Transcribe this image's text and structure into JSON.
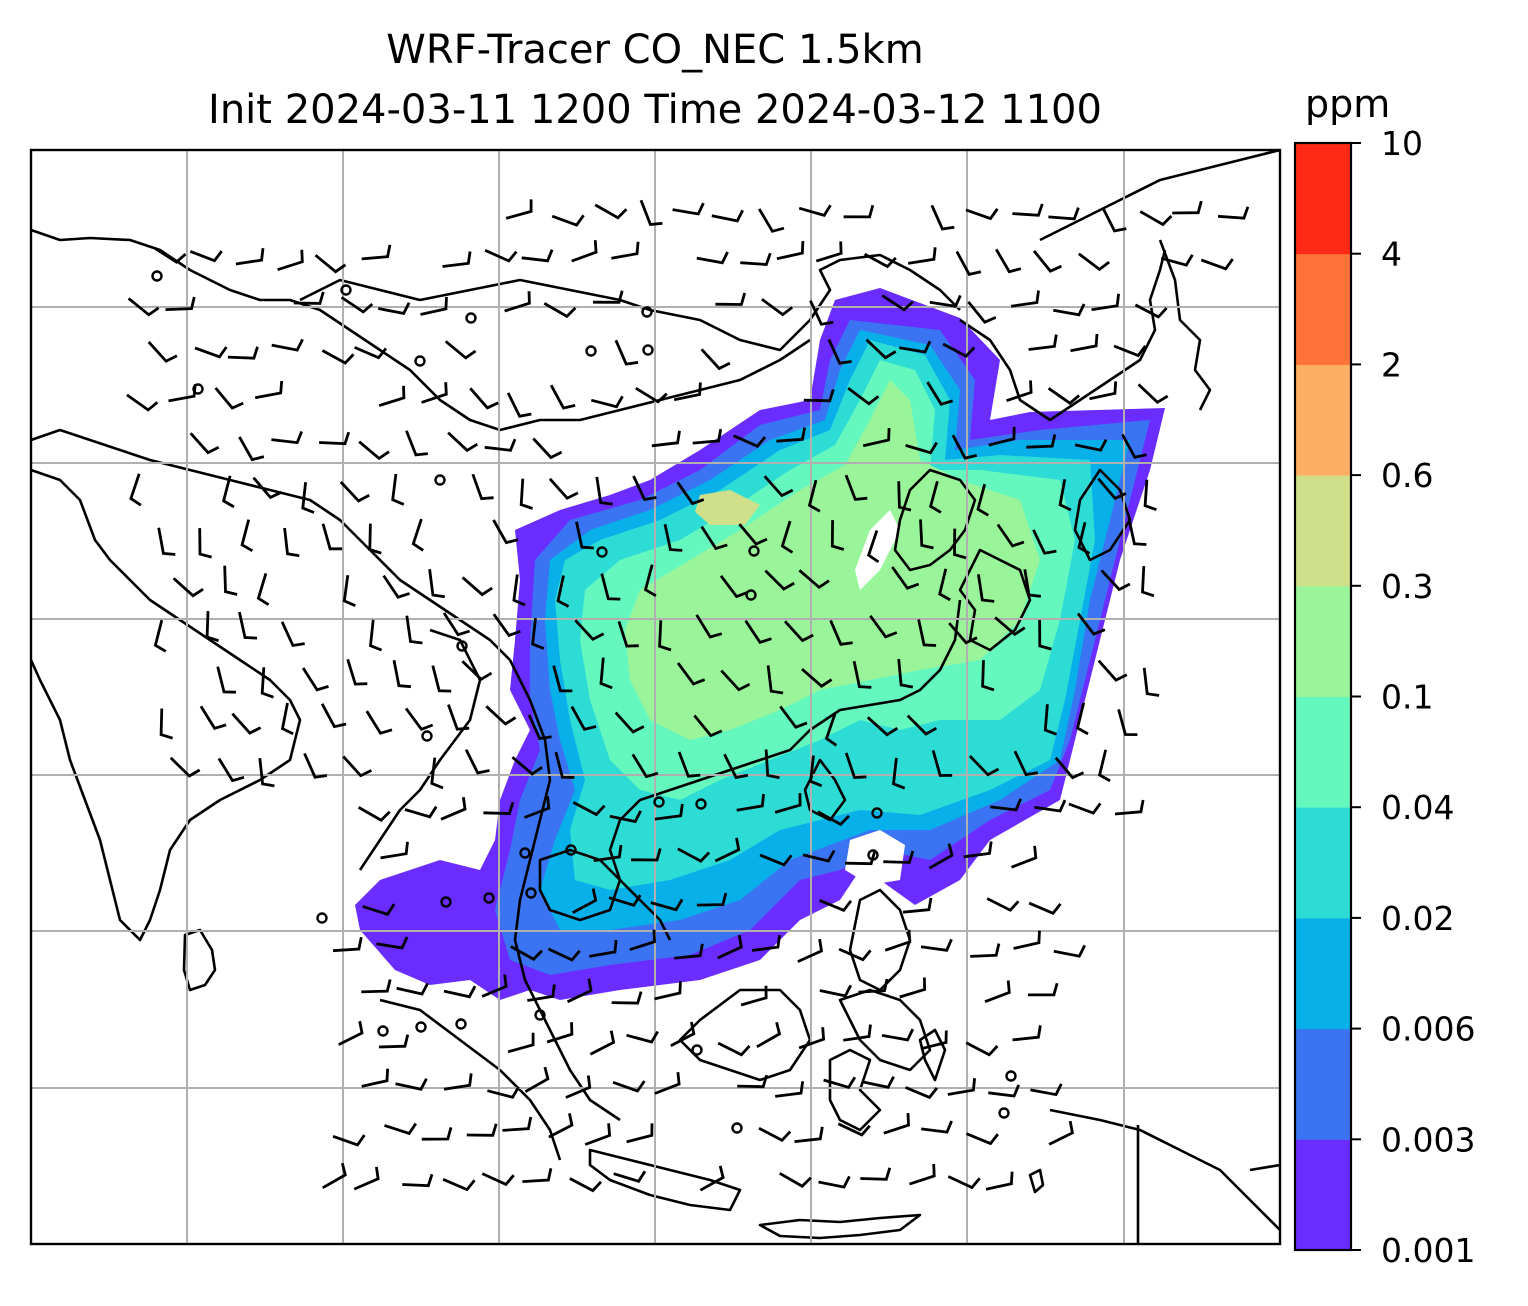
{
  "title": {
    "line1": "WRF-Tracer CO_NEC 1.5km",
    "line2": "Init 2024-03-11 1200 Time 2024-03-12 1100"
  },
  "colorbar": {
    "unit": "ppm",
    "levels": [
      0.001,
      0.003,
      0.006,
      0.02,
      0.04,
      0.1,
      0.3,
      0.6,
      2,
      4,
      10
    ],
    "labels": [
      "0.001",
      "0.003",
      "0.006",
      "0.02",
      "0.04",
      "0.1",
      "0.3",
      "0.6",
      "2",
      "4",
      "10"
    ],
    "colors": [
      "#6a2cff",
      "#3a74f2",
      "#08b0ea",
      "#2edcd6",
      "#64f8bf",
      "#9af59a",
      "#d0e08a",
      "#fdb063",
      "#ff7238",
      "#ff2a16"
    ]
  },
  "map": {
    "gridlines": true,
    "coastline_color": "#000000",
    "grid_color": "#b0b0b0"
  }
}
